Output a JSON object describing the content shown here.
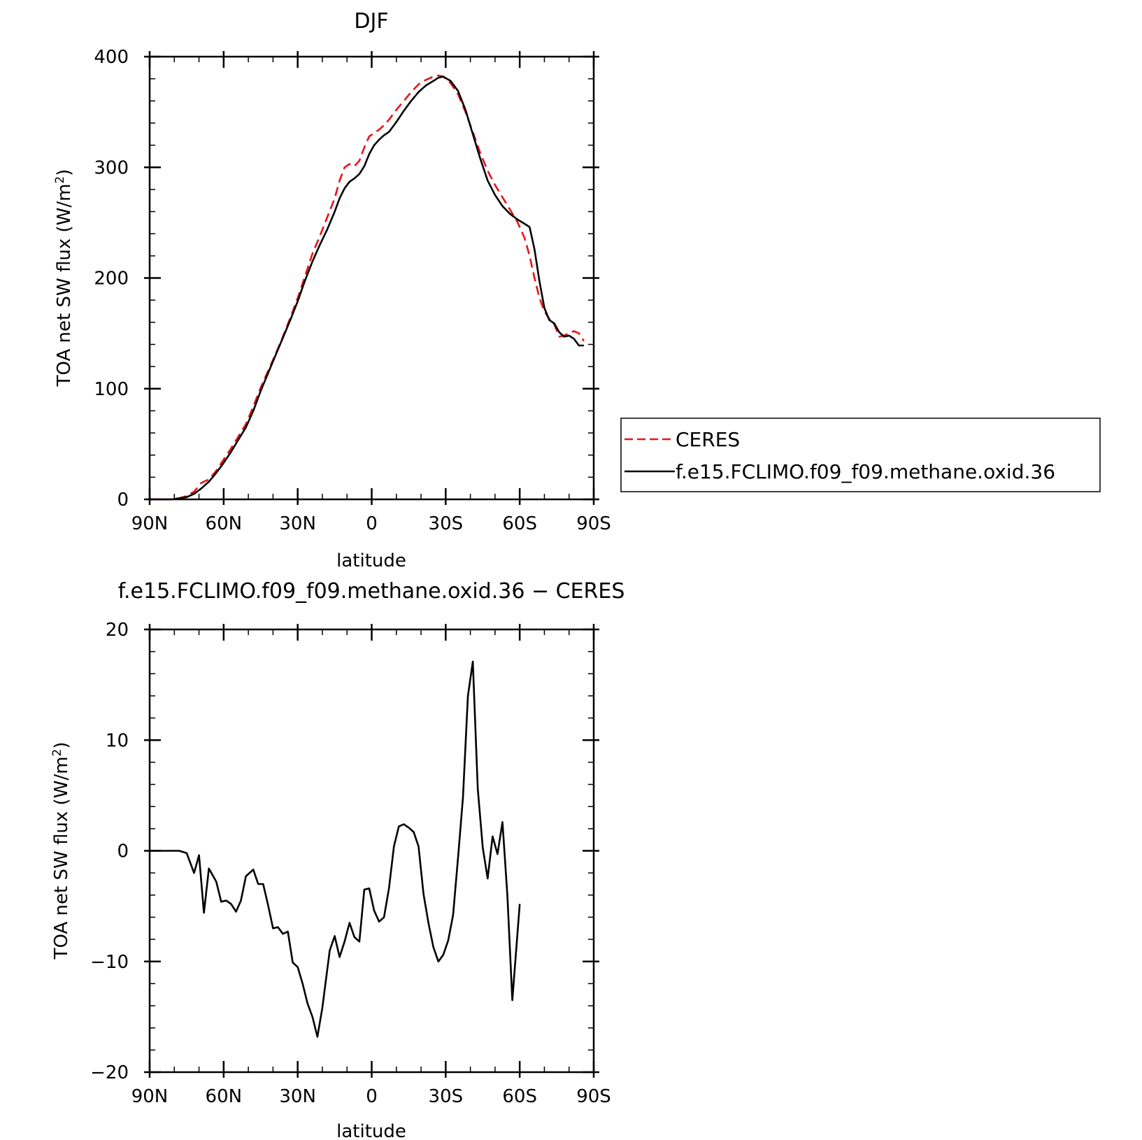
{
  "chart_data": [
    {
      "type": "line",
      "title": "DJF",
      "xlabel": "latitude",
      "ylabel": "TOA net SW flux (W/m²)",
      "ylabel_parts": [
        "TOA net SW flux (W/m",
        "2",
        ")"
      ],
      "xlim": [
        90,
        -90
      ],
      "ylim": [
        0,
        400
      ],
      "x_ticks": [
        90,
        60,
        30,
        0,
        -30,
        -60,
        -90
      ],
      "x_tick_labels": [
        "90N",
        "60N",
        "30N",
        "0",
        "30S",
        "60S",
        "90S"
      ],
      "y_ticks": [
        0,
        100,
        200,
        300,
        400
      ],
      "y_tick_labels": [
        "0",
        "100",
        "200",
        "300",
        "400"
      ],
      "grid": false,
      "legend_placement": "right",
      "series": [
        {
          "name": "CERES",
          "color": "#e8141b",
          "dash": "dashed",
          "points": [
            [
              90,
              0
            ],
            [
              87,
              0
            ],
            [
              84,
              0
            ],
            [
              81,
              0
            ],
            [
              78,
              1
            ],
            [
              75,
              3
            ],
            [
              72,
              7
            ],
            [
              69,
              15
            ],
            [
              66,
              18
            ],
            [
              63,
              26
            ],
            [
              60,
              36
            ],
            [
              57,
              46
            ],
            [
              54,
              57
            ],
            [
              51,
              68
            ],
            [
              48,
              84
            ],
            [
              45,
              101
            ],
            [
              42,
              116
            ],
            [
              39,
              131
            ],
            [
              36,
              147
            ],
            [
              33,
              164
            ],
            [
              30,
              182
            ],
            [
              27,
              202
            ],
            [
              24,
              222
            ],
            [
              21,
              238
            ],
            [
              18,
              255
            ],
            [
              15,
              272
            ],
            [
              13,
              288
            ],
            [
              11,
              300
            ],
            [
              9,
              303
            ],
            [
              7,
              301
            ],
            [
              5,
              306
            ],
            [
              3,
              318
            ],
            [
              1,
              328
            ],
            [
              -1,
              331
            ],
            [
              -3,
              334
            ],
            [
              -5,
              338
            ],
            [
              -7,
              343
            ],
            [
              -10,
              352
            ],
            [
              -13,
              360
            ],
            [
              -16,
              368
            ],
            [
              -19,
              375
            ],
            [
              -22,
              379
            ],
            [
              -25,
              382
            ],
            [
              -27,
              383
            ],
            [
              -29,
              382
            ],
            [
              -32,
              376
            ],
            [
              -35,
              366
            ],
            [
              -38,
              350
            ],
            [
              -41,
              332
            ],
            [
              -44,
              313
            ],
            [
              -47,
              297
            ],
            [
              -50,
              284
            ],
            [
              -53,
              273
            ],
            [
              -56,
              262
            ],
            [
              -59,
              251
            ],
            [
              -62,
              236
            ],
            [
              -64,
              220
            ],
            [
              -66,
              200
            ],
            [
              -68,
              182
            ],
            [
              -70,
              170
            ],
            [
              -72,
              163
            ],
            [
              -74,
              158
            ],
            [
              -76,
              147
            ],
            [
              -78,
              148
            ],
            [
              -80,
              150
            ],
            [
              -82,
              152
            ],
            [
              -84,
              150
            ],
            [
              -86,
              143
            ]
          ]
        },
        {
          "name": "f.e15.FCLIMO.f09_f09.methane.oxid.36",
          "color": "#000000",
          "dash": "solid",
          "points": [
            [
              90,
              0
            ],
            [
              87,
              0
            ],
            [
              84,
              0
            ],
            [
              81,
              0
            ],
            [
              78,
              1
            ],
            [
              75,
              2
            ],
            [
              72,
              5
            ],
            [
              69,
              10
            ],
            [
              66,
              16
            ],
            [
              63,
              24
            ],
            [
              60,
              33
            ],
            [
              57,
              43
            ],
            [
              54,
              54
            ],
            [
              51,
              65
            ],
            [
              48,
              80
            ],
            [
              45,
              98
            ],
            [
              42,
              114
            ],
            [
              39,
              130
            ],
            [
              36,
              146
            ],
            [
              33,
              162
            ],
            [
              30,
              179
            ],
            [
              27,
              198
            ],
            [
              24,
              215
            ],
            [
              21,
              230
            ],
            [
              18,
              244
            ],
            [
              15,
              260
            ],
            [
              13,
              272
            ],
            [
              11,
              281
            ],
            [
              9,
              287
            ],
            [
              7,
              290
            ],
            [
              5,
              294
            ],
            [
              3,
              301
            ],
            [
              1,
              312
            ],
            [
              -1,
              320
            ],
            [
              -3,
              325
            ],
            [
              -5,
              329
            ],
            [
              -7,
              332
            ],
            [
              -10,
              341
            ],
            [
              -13,
              351
            ],
            [
              -16,
              360
            ],
            [
              -19,
              368
            ],
            [
              -22,
              374
            ],
            [
              -25,
              378
            ],
            [
              -27,
              381
            ],
            [
              -29,
              382
            ],
            [
              -32,
              378
            ],
            [
              -35,
              369
            ],
            [
              -38,
              352
            ],
            [
              -41,
              330
            ],
            [
              -44,
              308
            ],
            [
              -47,
              288
            ],
            [
              -50,
              275
            ],
            [
              -53,
              265
            ],
            [
              -56,
              258
            ],
            [
              -59,
              253
            ],
            [
              -62,
              249
            ],
            [
              -64,
              246
            ],
            [
              -66,
              226
            ],
            [
              -68,
              197
            ],
            [
              -70,
              173
            ],
            [
              -72,
              162
            ],
            [
              -74,
              159
            ],
            [
              -76,
              151
            ],
            [
              -78,
              147
            ],
            [
              -80,
              148
            ],
            [
              -82,
              145
            ],
            [
              -84,
              139
            ],
            [
              -86,
              139
            ]
          ]
        }
      ]
    },
    {
      "type": "line",
      "title": "f.e15.FCLIMO.f09_f09.methane.oxid.36 − CERES",
      "xlabel": "latitude",
      "ylabel": "TOA net SW flux (W/m²)",
      "ylabel_parts": [
        "TOA net SW flux (W/m",
        "2",
        ")"
      ],
      "xlim": [
        90,
        -90
      ],
      "ylim": [
        -20,
        20
      ],
      "x_ticks": [
        90,
        60,
        30,
        0,
        -30,
        -60,
        -90
      ],
      "x_tick_labels": [
        "90N",
        "60N",
        "30N",
        "0",
        "30S",
        "60S",
        "90S"
      ],
      "y_ticks": [
        -20,
        -10,
        0,
        10,
        20
      ],
      "y_tick_labels": [
        "−20",
        "−10",
        "0",
        "10",
        "20"
      ],
      "grid": false,
      "series": [
        {
          "color": "#000000",
          "dash": "solid",
          "points": [
            [
              90,
              0
            ],
            [
              86,
              0
            ],
            [
              82,
              0
            ],
            [
              78,
              0
            ],
            [
              75,
              -0.2
            ],
            [
              72,
              -2
            ],
            [
              70,
              -0.4
            ],
            [
              68,
              -5.6
            ],
            [
              66,
              -1.6
            ],
            [
              63,
              -2.8
            ],
            [
              61,
              -4.6
            ],
            [
              59,
              -4.5
            ],
            [
              57,
              -4.8
            ],
            [
              55,
              -5.5
            ],
            [
              53,
              -4.5
            ],
            [
              51,
              -2.3
            ],
            [
              48,
              -1.7
            ],
            [
              46,
              -3
            ],
            [
              44,
              -3
            ],
            [
              42,
              -4.9
            ],
            [
              40,
              -7
            ],
            [
              38,
              -6.9
            ],
            [
              36,
              -7.5
            ],
            [
              34,
              -7.3
            ],
            [
              32,
              -10.1
            ],
            [
              30,
              -10.5
            ],
            [
              28,
              -12
            ],
            [
              26,
              -13.8
            ],
            [
              24,
              -15
            ],
            [
              22,
              -16.8
            ],
            [
              20,
              -14.2
            ],
            [
              17,
              -9
            ],
            [
              15,
              -7.7
            ],
            [
              13,
              -9.6
            ],
            [
              11,
              -8.2
            ],
            [
              9,
              -6.5
            ],
            [
              7,
              -7.8
            ],
            [
              5,
              -8.2
            ],
            [
              3,
              -3.5
            ],
            [
              1,
              -3.4
            ],
            [
              -1,
              -5.4
            ],
            [
              -3,
              -6.4
            ],
            [
              -5,
              -6
            ],
            [
              -7,
              -3.4
            ],
            [
              -9,
              0.4
            ],
            [
              -11,
              2.2
            ],
            [
              -13,
              2.4
            ],
            [
              -15,
              2.1
            ],
            [
              -17,
              1.7
            ],
            [
              -19,
              0.4
            ],
            [
              -21,
              -3.9
            ],
            [
              -23,
              -6.5
            ],
            [
              -25,
              -8.7
            ],
            [
              -27,
              -10
            ],
            [
              -29,
              -9.4
            ],
            [
              -31,
              -8.1
            ],
            [
              -33,
              -5.8
            ],
            [
              -35,
              -0.6
            ],
            [
              -37,
              4.8
            ],
            [
              -39,
              14
            ],
            [
              -41,
              17.1
            ],
            [
              -43,
              5.6
            ],
            [
              -45,
              0.3
            ],
            [
              -47,
              -2.5
            ],
            [
              -49,
              1.3
            ],
            [
              -51,
              -0.3
            ],
            [
              -53,
              2.6
            ],
            [
              -55,
              -4
            ],
            [
              -57,
              -13.5
            ],
            [
              -60,
              -4.8
            ]
          ]
        }
      ]
    }
  ]
}
